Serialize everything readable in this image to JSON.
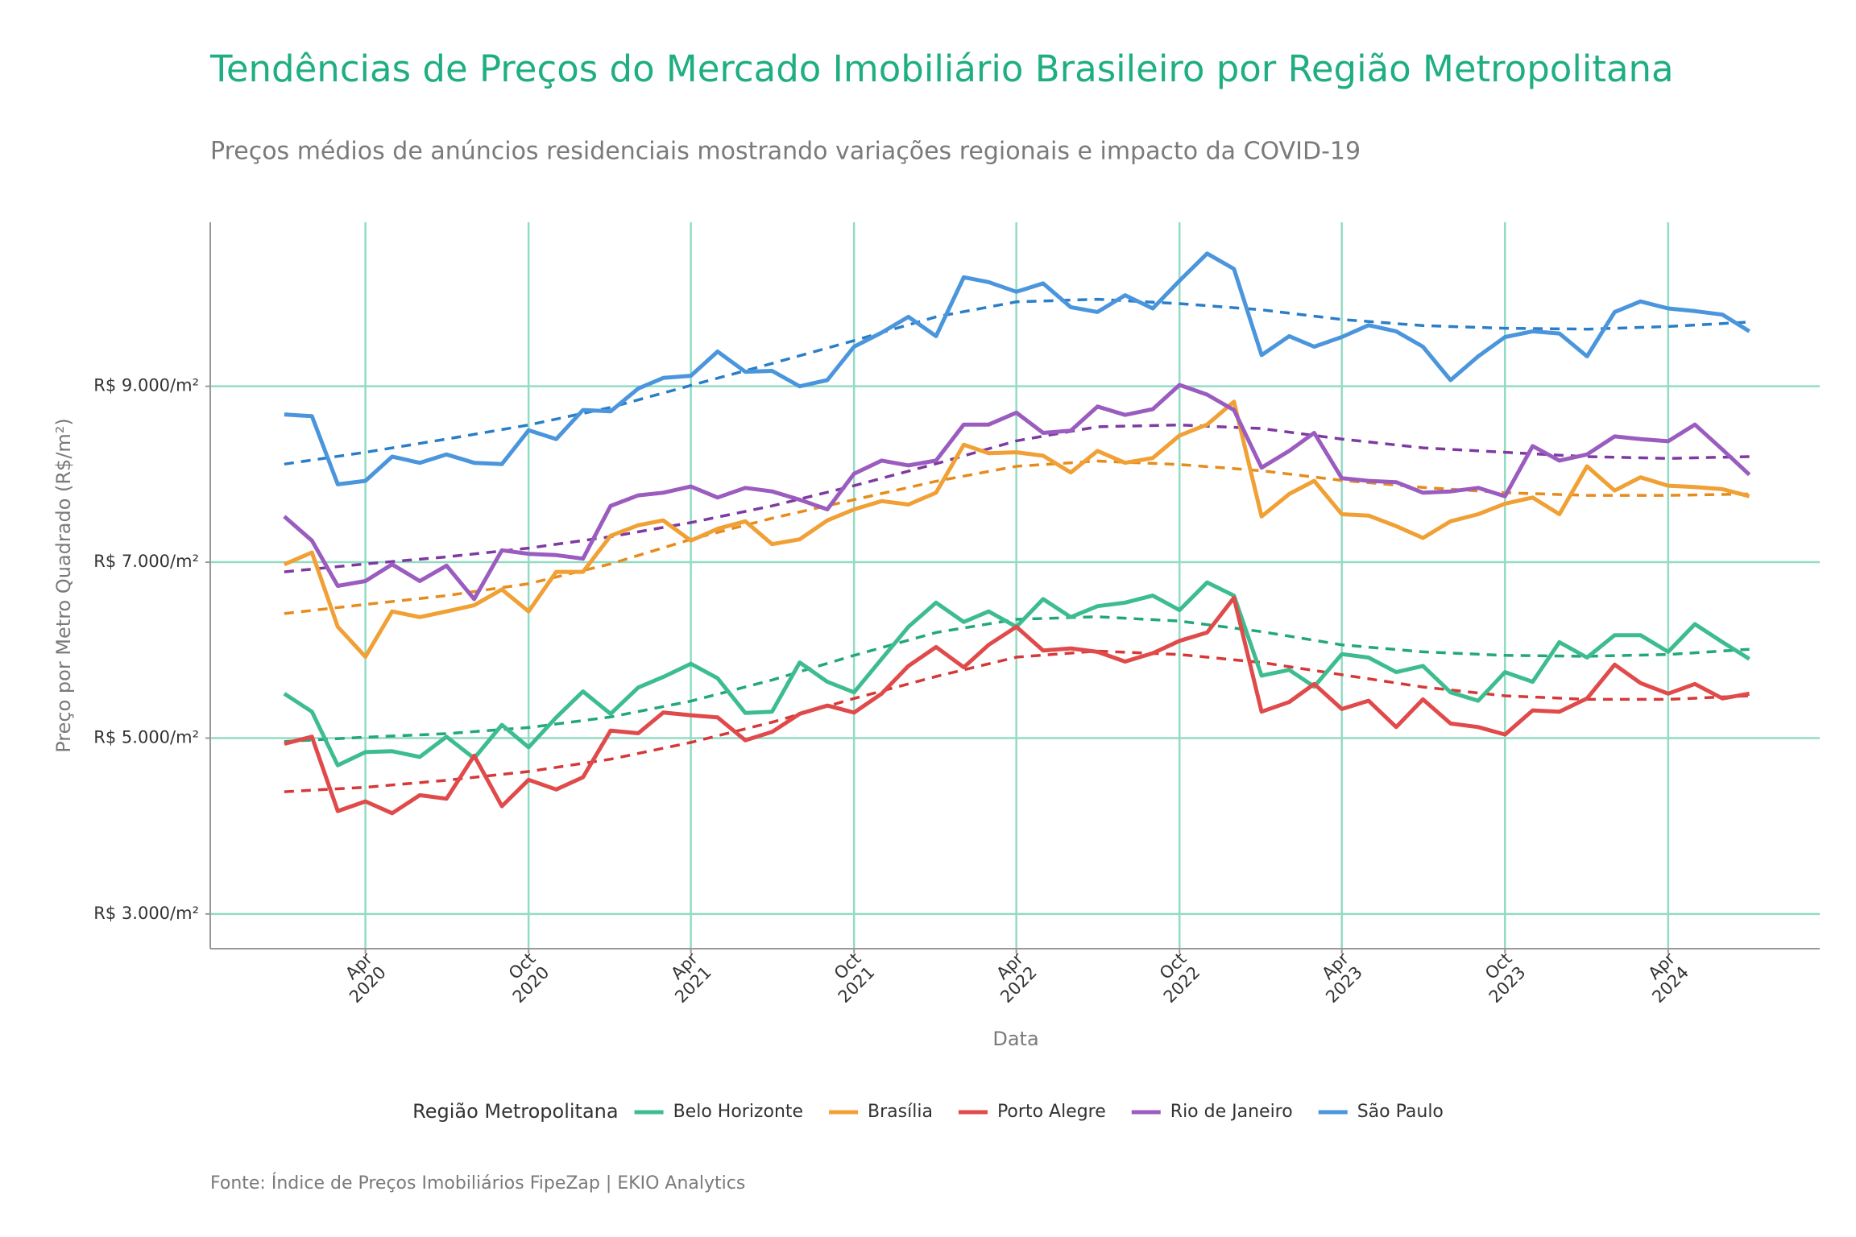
{
  "chart_data": {
    "type": "line",
    "title": "Tendências de Preços do Mercado Imobiliário Brasileiro por Região Metropolitana",
    "subtitle": "Preços médios de anúncios residenciais mostrando variações regionais e impacto da COVID-19",
    "x_label": "Data",
    "y_label": "Preço por Metro Quadrado (R$/m²)",
    "legend_title": "Região Metropolitana",
    "caption": "Fonte: Índice de Preços Imobiliários FipeZap | EKIO Analytics",
    "grid": true,
    "legend": "bottom",
    "x": [
      "2020-01",
      "2020-02",
      "2020-03",
      "2020-04",
      "2020-05",
      "2020-06",
      "2020-07",
      "2020-08",
      "2020-09",
      "2020-10",
      "2020-11",
      "2020-12",
      "2021-01",
      "2021-02",
      "2021-03",
      "2021-04",
      "2021-05",
      "2021-06",
      "2021-07",
      "2021-08",
      "2021-09",
      "2021-10",
      "2021-11",
      "2021-12",
      "2022-01",
      "2022-02",
      "2022-03",
      "2022-04",
      "2022-05",
      "2022-06",
      "2022-07",
      "2022-08",
      "2022-09",
      "2022-10",
      "2022-11",
      "2022-12",
      "2023-01",
      "2023-02",
      "2023-03",
      "2023-04",
      "2023-05",
      "2023-06",
      "2023-07",
      "2023-08",
      "2023-09",
      "2023-10",
      "2023-11",
      "2023-12",
      "2024-01",
      "2024-02",
      "2024-03",
      "2024-04",
      "2024-05",
      "2024-06",
      "2024-07"
    ],
    "trend_x": [
      "2020-01",
      "2020-04",
      "2020-07",
      "2020-10",
      "2021-01",
      "2021-04",
      "2021-07",
      "2021-10",
      "2022-01",
      "2022-04",
      "2022-07",
      "2022-10",
      "2023-01",
      "2023-04",
      "2023-07",
      "2023-10",
      "2024-01",
      "2024-04",
      "2024-07"
    ],
    "xlim": [
      "2019-10-10",
      "2024-09-18"
    ],
    "xticks": [
      {
        "value": "2020-04",
        "label": "Apr\n2020"
      },
      {
        "value": "2020-10",
        "label": "Oct\n2020"
      },
      {
        "value": "2021-04",
        "label": "Apr\n2021"
      },
      {
        "value": "2021-10",
        "label": "Oct\n2021"
      },
      {
        "value": "2022-04",
        "label": "Apr\n2022"
      },
      {
        "value": "2022-10",
        "label": "Oct\n2022"
      },
      {
        "value": "2023-04",
        "label": "Apr\n2023"
      },
      {
        "value": "2023-10",
        "label": "Oct\n2023"
      },
      {
        "value": "2024-04",
        "label": "Apr\n2024"
      }
    ],
    "ylim": [
      2605,
      10865
    ],
    "yticks": [
      {
        "value": 3000,
        "label": "R$ 3.000/m²"
      },
      {
        "value": 5000,
        "label": "R$ 5.000/m²"
      },
      {
        "value": 7000,
        "label": "R$ 7.000/m²"
      },
      {
        "value": 9000,
        "label": "R$ 9.000/m²"
      }
    ],
    "series": [
      {
        "name": "Belo Horizonte",
        "color": "#3dbd8f",
        "trend_color": "#22a878",
        "values": [
          5505,
          5300,
          4690,
          4840,
          4850,
          4785,
          5015,
          4770,
          5150,
          4895,
          5235,
          5530,
          5275,
          5575,
          5695,
          5845,
          5680,
          5285,
          5300,
          5860,
          5640,
          5520,
          5900,
          6265,
          6540,
          6320,
          6440,
          6265,
          6580,
          6375,
          6500,
          6540,
          6620,
          6455,
          6770,
          6620,
          5710,
          5775,
          5585,
          5955,
          5915,
          5750,
          5820,
          5520,
          5425,
          5750,
          5640,
          6090,
          5915,
          6170,
          6170,
          5980,
          6295,
          6090,
          5900
        ],
        "trend": [
          4960,
          5010,
          5050,
          5120,
          5240,
          5420,
          5660,
          5940,
          6200,
          6350,
          6380,
          6330,
          6210,
          6060,
          5980,
          5940,
          5930,
          5950,
          6010
        ]
      },
      {
        "name": "Brasília",
        "color": "#f0a035",
        "trend_color": "#e68c1c",
        "values": [
          6975,
          7110,
          6265,
          5925,
          6440,
          6375,
          6440,
          6510,
          6690,
          6440,
          6890,
          6890,
          7300,
          7420,
          7475,
          7245,
          7380,
          7465,
          7205,
          7260,
          7475,
          7600,
          7695,
          7655,
          7790,
          8335,
          8240,
          8250,
          8210,
          8020,
          8265,
          8130,
          8185,
          8440,
          8565,
          8825,
          7520,
          7775,
          7925,
          7545,
          7530,
          7410,
          7275,
          7465,
          7545,
          7665,
          7735,
          7545,
          8090,
          7815,
          7965,
          7870,
          7855,
          7830,
          7750
        ],
        "trend": [
          6415,
          6520,
          6620,
          6755,
          6980,
          7260,
          7500,
          7710,
          7920,
          8090,
          8150,
          8110,
          8040,
          7930,
          7850,
          7790,
          7760,
          7760,
          7775
        ]
      },
      {
        "name": "Porto Alegre",
        "color": "#e04a4a",
        "trend_color": "#d63838",
        "values": [
          4935,
          5015,
          4170,
          4280,
          4145,
          4350,
          4310,
          4800,
          4225,
          4525,
          4415,
          4555,
          5085,
          5055,
          5290,
          5260,
          5235,
          4975,
          5070,
          5275,
          5370,
          5290,
          5505,
          5820,
          6035,
          5805,
          6060,
          6265,
          5995,
          6020,
          5980,
          5870,
          5965,
          6105,
          6200,
          6595,
          5300,
          5410,
          5615,
          5330,
          5425,
          5125,
          5440,
          5165,
          5125,
          5040,
          5315,
          5300,
          5450,
          5835,
          5625,
          5505,
          5615,
          5450,
          5505
        ],
        "trend": [
          4390,
          4440,
          4520,
          4620,
          4760,
          4950,
          5180,
          5450,
          5700,
          5920,
          5990,
          5950,
          5860,
          5720,
          5580,
          5480,
          5440,
          5440,
          5480
        ]
      },
      {
        "name": "Rio de Janeiro",
        "color": "#9b5cbf",
        "trend_color": "#7e3aa0",
        "values": [
          7520,
          7245,
          6730,
          6785,
          6975,
          6785,
          6960,
          6580,
          7135,
          7095,
          7080,
          7040,
          7640,
          7760,
          7790,
          7860,
          7735,
          7845,
          7805,
          7710,
          7600,
          8005,
          8155,
          8100,
          8155,
          8565,
          8565,
          8700,
          8470,
          8495,
          8770,
          8675,
          8740,
          9015,
          8905,
          8730,
          8075,
          8265,
          8470,
          7955,
          7925,
          7910,
          7790,
          7805,
          7845,
          7750,
          8320,
          8155,
          8225,
          8430,
          8400,
          8375,
          8565,
          8280,
          7995
        ],
        "trend": [
          6890,
          6980,
          7060,
          7160,
          7290,
          7450,
          7640,
          7870,
          8120,
          8380,
          8540,
          8560,
          8520,
          8400,
          8300,
          8250,
          8200,
          8180,
          8200
        ]
      },
      {
        "name": "São Paulo",
        "color": "#4a95dc",
        "trend_color": "#2a7ec8",
        "values": [
          8680,
          8660,
          7885,
          7925,
          8200,
          8130,
          8225,
          8130,
          8115,
          8500,
          8400,
          8730,
          8715,
          8975,
          9095,
          9120,
          9395,
          9165,
          9175,
          9000,
          9070,
          9450,
          9610,
          9790,
          9570,
          10240,
          10185,
          10075,
          10170,
          9900,
          9845,
          10035,
          9885,
          10200,
          10510,
          10335,
          9355,
          9570,
          9450,
          9560,
          9695,
          9625,
          9450,
          9070,
          9340,
          9560,
          9625,
          9600,
          9340,
          9845,
          9965,
          9885,
          9855,
          9815,
          9625
        ],
        "trend": [
          8115,
          8250,
          8400,
          8560,
          8760,
          9010,
          9260,
          9520,
          9790,
          9960,
          9990,
          9940,
          9870,
          9760,
          9690,
          9660,
          9650,
          9680,
          9730
        ]
      }
    ]
  }
}
